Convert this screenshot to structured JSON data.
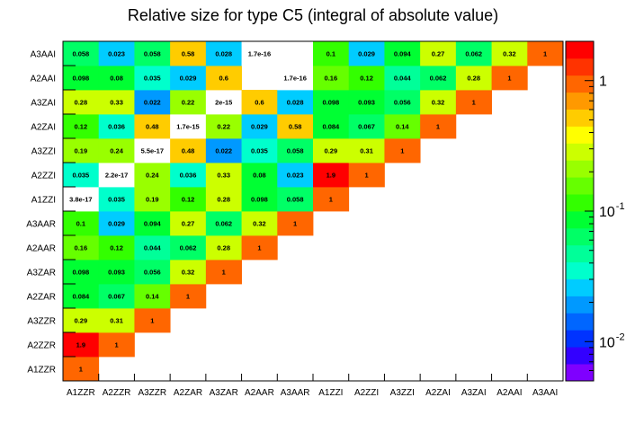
{
  "chart_data": {
    "type": "heatmap",
    "title": "Relative size for type C5 (integral of absolute value)",
    "x_categories": [
      "A1ZZR",
      "A2ZZR",
      "A3ZZR",
      "A2ZAR",
      "A3ZAR",
      "A2AAR",
      "A3AAR",
      "A1ZZI",
      "A2ZZI",
      "A3ZZI",
      "A2ZAI",
      "A3ZAI",
      "A2AAI",
      "A3AAI"
    ],
    "y_categories": [
      "A1ZZR",
      "A2ZZR",
      "A3ZZR",
      "A2ZAR",
      "A3ZAR",
      "A2AAR",
      "A3AAR",
      "A1ZZI",
      "A2ZZI",
      "A3ZZI",
      "A2ZAI",
      "A3ZAI",
      "A2AAI",
      "A3AAI"
    ],
    "cells": [
      {
        "x": "A1ZZR",
        "y": "A1ZZR",
        "label": "1",
        "value": 1
      },
      {
        "x": "A1ZZR",
        "y": "A2ZZR",
        "label": "1.9",
        "value": 1.9
      },
      {
        "x": "A2ZZR",
        "y": "A2ZZR",
        "label": "1",
        "value": 1
      },
      {
        "x": "A1ZZR",
        "y": "A3ZZR",
        "label": "0.29",
        "value": 0.29
      },
      {
        "x": "A2ZZR",
        "y": "A3ZZR",
        "label": "0.31",
        "value": 0.31
      },
      {
        "x": "A3ZZR",
        "y": "A3ZZR",
        "label": "1",
        "value": 1
      },
      {
        "x": "A1ZZR",
        "y": "A2ZAR",
        "label": "0.084",
        "value": 0.084
      },
      {
        "x": "A2ZZR",
        "y": "A2ZAR",
        "label": "0.067",
        "value": 0.067
      },
      {
        "x": "A3ZZR",
        "y": "A2ZAR",
        "label": "0.14",
        "value": 0.14
      },
      {
        "x": "A2ZAR",
        "y": "A2ZAR",
        "label": "1",
        "value": 1
      },
      {
        "x": "A1ZZR",
        "y": "A3ZAR",
        "label": "0.098",
        "value": 0.098
      },
      {
        "x": "A2ZZR",
        "y": "A3ZAR",
        "label": "0.093",
        "value": 0.093
      },
      {
        "x": "A3ZZR",
        "y": "A3ZAR",
        "label": "0.056",
        "value": 0.056
      },
      {
        "x": "A2ZAR",
        "y": "A3ZAR",
        "label": "0.32",
        "value": 0.32
      },
      {
        "x": "A3ZAR",
        "y": "A3ZAR",
        "label": "1",
        "value": 1
      },
      {
        "x": "A1ZZR",
        "y": "A2AAR",
        "label": "0.16",
        "value": 0.16
      },
      {
        "x": "A2ZZR",
        "y": "A2AAR",
        "label": "0.12",
        "value": 0.12
      },
      {
        "x": "A3ZZR",
        "y": "A2AAR",
        "label": "0.044",
        "value": 0.044
      },
      {
        "x": "A2ZAR",
        "y": "A2AAR",
        "label": "0.062",
        "value": 0.062
      },
      {
        "x": "A3ZAR",
        "y": "A2AAR",
        "label": "0.28",
        "value": 0.28
      },
      {
        "x": "A2AAR",
        "y": "A2AAR",
        "label": "1",
        "value": 1
      },
      {
        "x": "A1ZZR",
        "y": "A3AAR",
        "label": "0.1",
        "value": 0.1
      },
      {
        "x": "A2ZZR",
        "y": "A3AAR",
        "label": "0.029",
        "value": 0.029
      },
      {
        "x": "A3ZZR",
        "y": "A3AAR",
        "label": "0.094",
        "value": 0.094
      },
      {
        "x": "A2ZAR",
        "y": "A3AAR",
        "label": "0.27",
        "value": 0.27
      },
      {
        "x": "A3ZAR",
        "y": "A3AAR",
        "label": "0.062",
        "value": 0.062
      },
      {
        "x": "A2AAR",
        "y": "A3AAR",
        "label": "0.32",
        "value": 0.32
      },
      {
        "x": "A3AAR",
        "y": "A3AAR",
        "label": "1",
        "value": 1
      },
      {
        "x": "A1ZZR",
        "y": "A1ZZI",
        "label": "3.8e-17",
        "value": 3.8e-17
      },
      {
        "x": "A2ZZR",
        "y": "A1ZZI",
        "label": "0.035",
        "value": 0.035
      },
      {
        "x": "A3ZZR",
        "y": "A1ZZI",
        "label": "0.19",
        "value": 0.19
      },
      {
        "x": "A2ZAR",
        "y": "A1ZZI",
        "label": "0.12",
        "value": 0.12
      },
      {
        "x": "A3ZAR",
        "y": "A1ZZI",
        "label": "0.28",
        "value": 0.28
      },
      {
        "x": "A2AAR",
        "y": "A1ZZI",
        "label": "0.098",
        "value": 0.098
      },
      {
        "x": "A3AAR",
        "y": "A1ZZI",
        "label": "0.058",
        "value": 0.058
      },
      {
        "x": "A1ZZI",
        "y": "A1ZZI",
        "label": "1",
        "value": 1
      },
      {
        "x": "A1ZZR",
        "y": "A2ZZI",
        "label": "0.035",
        "value": 0.035
      },
      {
        "x": "A2ZZR",
        "y": "A2ZZI",
        "label": "2.2e-17",
        "value": 2.2e-17
      },
      {
        "x": "A3ZZR",
        "y": "A2ZZI",
        "label": "0.24",
        "value": 0.24
      },
      {
        "x": "A2ZAR",
        "y": "A2ZZI",
        "label": "0.036",
        "value": 0.036
      },
      {
        "x": "A3ZAR",
        "y": "A2ZZI",
        "label": "0.33",
        "value": 0.33
      },
      {
        "x": "A2AAR",
        "y": "A2ZZI",
        "label": "0.08",
        "value": 0.08
      },
      {
        "x": "A3AAR",
        "y": "A2ZZI",
        "label": "0.023",
        "value": 0.023
      },
      {
        "x": "A1ZZI",
        "y": "A2ZZI",
        "label": "1.9",
        "value": 1.9
      },
      {
        "x": "A2ZZI",
        "y": "A2ZZI",
        "label": "1",
        "value": 1
      },
      {
        "x": "A1ZZR",
        "y": "A3ZZI",
        "label": "0.19",
        "value": 0.19
      },
      {
        "x": "A2ZZR",
        "y": "A3ZZI",
        "label": "0.24",
        "value": 0.24
      },
      {
        "x": "A3ZZR",
        "y": "A3ZZI",
        "label": "5.5e-17",
        "value": 5.5e-17
      },
      {
        "x": "A2ZAR",
        "y": "A3ZZI",
        "label": "0.48",
        "value": 0.48
      },
      {
        "x": "A3ZAR",
        "y": "A3ZZI",
        "label": "0.022",
        "value": 0.022
      },
      {
        "x": "A2AAR",
        "y": "A3ZZI",
        "label": "0.035",
        "value": 0.035
      },
      {
        "x": "A3AAR",
        "y": "A3ZZI",
        "label": "0.058",
        "value": 0.058
      },
      {
        "x": "A1ZZI",
        "y": "A3ZZI",
        "label": "0.29",
        "value": 0.29
      },
      {
        "x": "A2ZZI",
        "y": "A3ZZI",
        "label": "0.31",
        "value": 0.31
      },
      {
        "x": "A3ZZI",
        "y": "A3ZZI",
        "label": "1",
        "value": 1
      },
      {
        "x": "A1ZZR",
        "y": "A2ZAI",
        "label": "0.12",
        "value": 0.12
      },
      {
        "x": "A2ZZR",
        "y": "A2ZAI",
        "label": "0.036",
        "value": 0.036
      },
      {
        "x": "A3ZZR",
        "y": "A2ZAI",
        "label": "0.48",
        "value": 0.48
      },
      {
        "x": "A2ZAR",
        "y": "A2ZAI",
        "label": "1.7e-15",
        "value": 1.7e-15
      },
      {
        "x": "A3ZAR",
        "y": "A2ZAI",
        "label": "0.22",
        "value": 0.22
      },
      {
        "x": "A2AAR",
        "y": "A2ZAI",
        "label": "0.029",
        "value": 0.029
      },
      {
        "x": "A3AAR",
        "y": "A2ZAI",
        "label": "0.58",
        "value": 0.58
      },
      {
        "x": "A1ZZI",
        "y": "A2ZAI",
        "label": "0.084",
        "value": 0.084
      },
      {
        "x": "A2ZZI",
        "y": "A2ZAI",
        "label": "0.067",
        "value": 0.067
      },
      {
        "x": "A3ZZI",
        "y": "A2ZAI",
        "label": "0.14",
        "value": 0.14
      },
      {
        "x": "A2ZAI",
        "y": "A2ZAI",
        "label": "1",
        "value": 1
      },
      {
        "x": "A1ZZR",
        "y": "A3ZAI",
        "label": "0.28",
        "value": 0.28
      },
      {
        "x": "A2ZZR",
        "y": "A3ZAI",
        "label": "0.33",
        "value": 0.33
      },
      {
        "x": "A3ZZR",
        "y": "A3ZAI",
        "label": "0.022",
        "value": 0.022
      },
      {
        "x": "A2ZAR",
        "y": "A3ZAI",
        "label": "0.22",
        "value": 0.22
      },
      {
        "x": "A3ZAR",
        "y": "A3ZAI",
        "label": "2e-15",
        "value": 2e-15
      },
      {
        "x": "A2AAR",
        "y": "A3ZAI",
        "label": "0.6",
        "value": 0.6
      },
      {
        "x": "A3AAR",
        "y": "A3ZAI",
        "label": "0.028",
        "value": 0.028
      },
      {
        "x": "A1ZZI",
        "y": "A3ZAI",
        "label": "0.098",
        "value": 0.098
      },
      {
        "x": "A2ZZI",
        "y": "A3ZAI",
        "label": "0.093",
        "value": 0.093
      },
      {
        "x": "A3ZZI",
        "y": "A3ZAI",
        "label": "0.056",
        "value": 0.056
      },
      {
        "x": "A2ZAI",
        "y": "A3ZAI",
        "label": "0.32",
        "value": 0.32
      },
      {
        "x": "A3ZAI",
        "y": "A3ZAI",
        "label": "1",
        "value": 1
      },
      {
        "x": "A1ZZR",
        "y": "A2AAI",
        "label": "0.098",
        "value": 0.098
      },
      {
        "x": "A2ZZR",
        "y": "A2AAI",
        "label": "0.08",
        "value": 0.08
      },
      {
        "x": "A3ZZR",
        "y": "A2AAI",
        "label": "0.035",
        "value": 0.035
      },
      {
        "x": "A2ZAR",
        "y": "A2AAI",
        "label": "0.029",
        "value": 0.029
      },
      {
        "x": "A3ZAR",
        "y": "A2AAI",
        "label": "0.6",
        "value": 0.6
      },
      {
        "x": "A3AAR",
        "y": "A2AAI",
        "label": "1.7e-16",
        "value": 1.7e-16
      },
      {
        "x": "A1ZZI",
        "y": "A2AAI",
        "label": "0.16",
        "value": 0.16
      },
      {
        "x": "A2ZZI",
        "y": "A2AAI",
        "label": "0.12",
        "value": 0.12
      },
      {
        "x": "A3ZZI",
        "y": "A2AAI",
        "label": "0.044",
        "value": 0.044
      },
      {
        "x": "A2ZAI",
        "y": "A2AAI",
        "label": "0.062",
        "value": 0.062
      },
      {
        "x": "A3ZAI",
        "y": "A2AAI",
        "label": "0.28",
        "value": 0.28
      },
      {
        "x": "A2AAI",
        "y": "A2AAI",
        "label": "1",
        "value": 1
      },
      {
        "x": "A1ZZR",
        "y": "A3AAI",
        "label": "0.058",
        "value": 0.058
      },
      {
        "x": "A2ZZR",
        "y": "A3AAI",
        "label": "0.023",
        "value": 0.023
      },
      {
        "x": "A3ZZR",
        "y": "A3AAI",
        "label": "0.058",
        "value": 0.058
      },
      {
        "x": "A2ZAR",
        "y": "A3AAI",
        "label": "0.58",
        "value": 0.58
      },
      {
        "x": "A3ZAR",
        "y": "A3AAI",
        "label": "0.028",
        "value": 0.028
      },
      {
        "x": "A2AAR",
        "y": "A3AAI",
        "label": "1.7e-16",
        "value": 1.7e-16
      },
      {
        "x": "A1ZZI",
        "y": "A3AAI",
        "label": "0.1",
        "value": 0.1
      },
      {
        "x": "A2ZZI",
        "y": "A3AAI",
        "label": "0.029",
        "value": 0.029
      },
      {
        "x": "A3ZZI",
        "y": "A3AAI",
        "label": "0.094",
        "value": 0.094
      },
      {
        "x": "A2ZAI",
        "y": "A3AAI",
        "label": "0.27",
        "value": 0.27
      },
      {
        "x": "A3ZAI",
        "y": "A3AAI",
        "label": "0.062",
        "value": 0.062
      },
      {
        "x": "A2AAI",
        "y": "A3AAI",
        "label": "0.32",
        "value": 0.32
      },
      {
        "x": "A3AAI",
        "y": "A3AAI",
        "label": "1",
        "value": 1
      }
    ],
    "colorbar": {
      "scale": "log",
      "range": [
        0.005,
        2
      ],
      "ticks": [
        {
          "value": 0.01,
          "base": "10",
          "exp": "-2"
        },
        {
          "value": 0.1,
          "base": "10",
          "exp": "-1"
        },
        {
          "value": 1,
          "base": "1",
          "exp": ""
        }
      ],
      "palette": [
        "#7f00ff",
        "#3300ff",
        "#0033ff",
        "#0066ff",
        "#0099ff",
        "#00ccff",
        "#00ffcc",
        "#00ff99",
        "#00ff66",
        "#00ff33",
        "#33ff00",
        "#66ff00",
        "#99ff00",
        "#ccff00",
        "#ffff00",
        "#ffcc00",
        "#ff9900",
        "#ff6600",
        "#ff3300",
        "#ff0000"
      ]
    },
    "below_range_color": "#ffffff",
    "grid": false,
    "legend": "colorbar-right"
  }
}
